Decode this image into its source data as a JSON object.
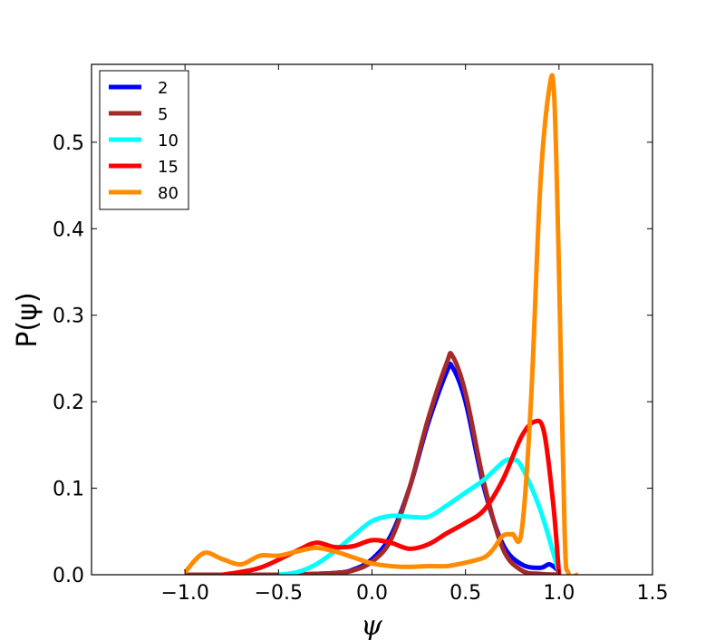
{
  "chart_data": {
    "type": "line",
    "title": "",
    "xlabel": "ψ",
    "ylabel": "P(ψ)",
    "xlim": [
      -1.5,
      1.5
    ],
    "ylim": [
      0.0,
      0.59
    ],
    "xticks": [
      -1.0,
      -0.5,
      0.0,
      0.5,
      1.0,
      1.5
    ],
    "xtick_labels": [
      "−1.0",
      "−0.5",
      "0.0",
      "0.5",
      "1.0",
      "1.5"
    ],
    "yticks": [
      0.0,
      0.1,
      0.2,
      0.3,
      0.4,
      0.5
    ],
    "ytick_labels": [
      "0.0",
      "0.1",
      "0.2",
      "0.3",
      "0.4",
      "0.5"
    ],
    "grid": false,
    "legend_position": "top-left",
    "series": [
      {
        "name": "2",
        "color": "#0000ff",
        "x": [
          -1.0,
          -0.5,
          -0.2,
          -0.1,
          0.0,
          0.1,
          0.2,
          0.3,
          0.4,
          0.43,
          0.5,
          0.6,
          0.7,
          0.8,
          0.9,
          0.95,
          1.0
        ],
        "y": [
          0.0,
          0.0,
          0.002,
          0.006,
          0.018,
          0.045,
          0.1,
          0.175,
          0.235,
          0.24,
          0.2,
          0.1,
          0.035,
          0.012,
          0.008,
          0.012,
          0.004
        ]
      },
      {
        "name": "5",
        "color": "#a52a2a",
        "x": [
          -1.0,
          -0.5,
          -0.2,
          -0.1,
          0.0,
          0.1,
          0.2,
          0.3,
          0.4,
          0.43,
          0.5,
          0.6,
          0.7,
          0.8,
          0.9,
          1.0
        ],
        "y": [
          0.0,
          0.0,
          0.002,
          0.005,
          0.015,
          0.04,
          0.1,
          0.18,
          0.245,
          0.253,
          0.21,
          0.105,
          0.03,
          0.005,
          0.001,
          0.0
        ]
      },
      {
        "name": "10",
        "color": "#00ffff",
        "x": [
          -0.5,
          -0.4,
          -0.3,
          -0.2,
          -0.1,
          0.0,
          0.1,
          0.2,
          0.3,
          0.4,
          0.5,
          0.6,
          0.7,
          0.75,
          0.8,
          0.9,
          1.0
        ],
        "y": [
          0.0,
          0.003,
          0.012,
          0.027,
          0.045,
          0.062,
          0.068,
          0.067,
          0.067,
          0.08,
          0.095,
          0.11,
          0.13,
          0.133,
          0.125,
          0.075,
          0.002
        ]
      },
      {
        "name": "15",
        "color": "#ff0000",
        "x": [
          -0.8,
          -0.6,
          -0.4,
          -0.3,
          -0.2,
          -0.1,
          0.0,
          0.1,
          0.2,
          0.3,
          0.4,
          0.5,
          0.6,
          0.7,
          0.8,
          0.87,
          0.92,
          0.97,
          1.0
        ],
        "y": [
          0.0,
          0.008,
          0.028,
          0.037,
          0.032,
          0.033,
          0.04,
          0.037,
          0.03,
          0.035,
          0.048,
          0.06,
          0.075,
          0.11,
          0.16,
          0.177,
          0.165,
          0.08,
          0.0
        ]
      },
      {
        "name": "80",
        "color": "#ff8c00",
        "x": [
          -1.0,
          -0.9,
          -0.8,
          -0.7,
          -0.6,
          -0.5,
          -0.4,
          -0.3,
          -0.2,
          -0.1,
          0.0,
          0.1,
          0.2,
          0.3,
          0.4,
          0.5,
          0.6,
          0.65,
          0.7,
          0.75,
          0.8,
          0.85,
          0.9,
          0.95,
          0.975,
          1.0,
          1.03,
          1.05,
          1.1
        ],
        "y": [
          0.003,
          0.025,
          0.018,
          0.012,
          0.022,
          0.022,
          0.027,
          0.031,
          0.027,
          0.02,
          0.013,
          0.01,
          0.009,
          0.01,
          0.01,
          0.014,
          0.02,
          0.03,
          0.045,
          0.047,
          0.05,
          0.2,
          0.45,
          0.565,
          0.55,
          0.35,
          0.05,
          0.002,
          0.0
        ]
      }
    ]
  }
}
